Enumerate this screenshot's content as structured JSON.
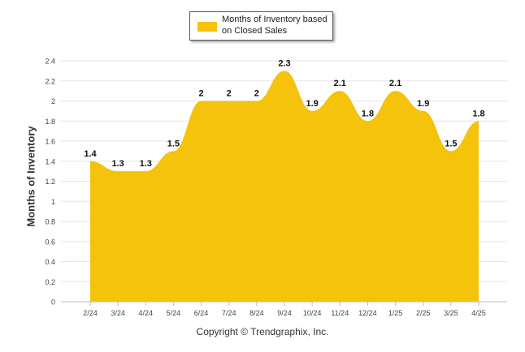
{
  "chart_data": {
    "type": "area",
    "categories": [
      "2/24",
      "3/24",
      "4/24",
      "5/24",
      "6/24",
      "7/24",
      "8/24",
      "9/24",
      "10/24",
      "11/24",
      "12/24",
      "1/25",
      "2/25",
      "3/25",
      "4/25"
    ],
    "series": [
      {
        "name": "Months of Inventory based on Closed Sales",
        "values": [
          1.4,
          1.3,
          1.3,
          1.5,
          2,
          2,
          2,
          2.3,
          1.9,
          2.1,
          1.8,
          2.1,
          1.9,
          1.5,
          1.8
        ],
        "labels": [
          "1.4",
          "1.3",
          "1.3",
          "1.5",
          "2",
          "2",
          "2",
          "2.3",
          "1.9",
          "2.1",
          "1.8",
          "2.1",
          "1.9",
          "1.5",
          "1.8"
        ]
      }
    ],
    "title": "",
    "xlabel": "",
    "ylabel": "Months of Inventory",
    "ylim": [
      0,
      2.4
    ],
    "yticks": [
      "0",
      "0.2",
      "0.4",
      "0.6",
      "0.8",
      "1",
      "1.2",
      "1.4",
      "1.6",
      "1.8",
      "2",
      "2.2",
      "2.4"
    ],
    "grid": true,
    "legend_position": "top-center",
    "color": "#F5C20C"
  },
  "footer": "Copyright © Trendgraphix, Inc."
}
